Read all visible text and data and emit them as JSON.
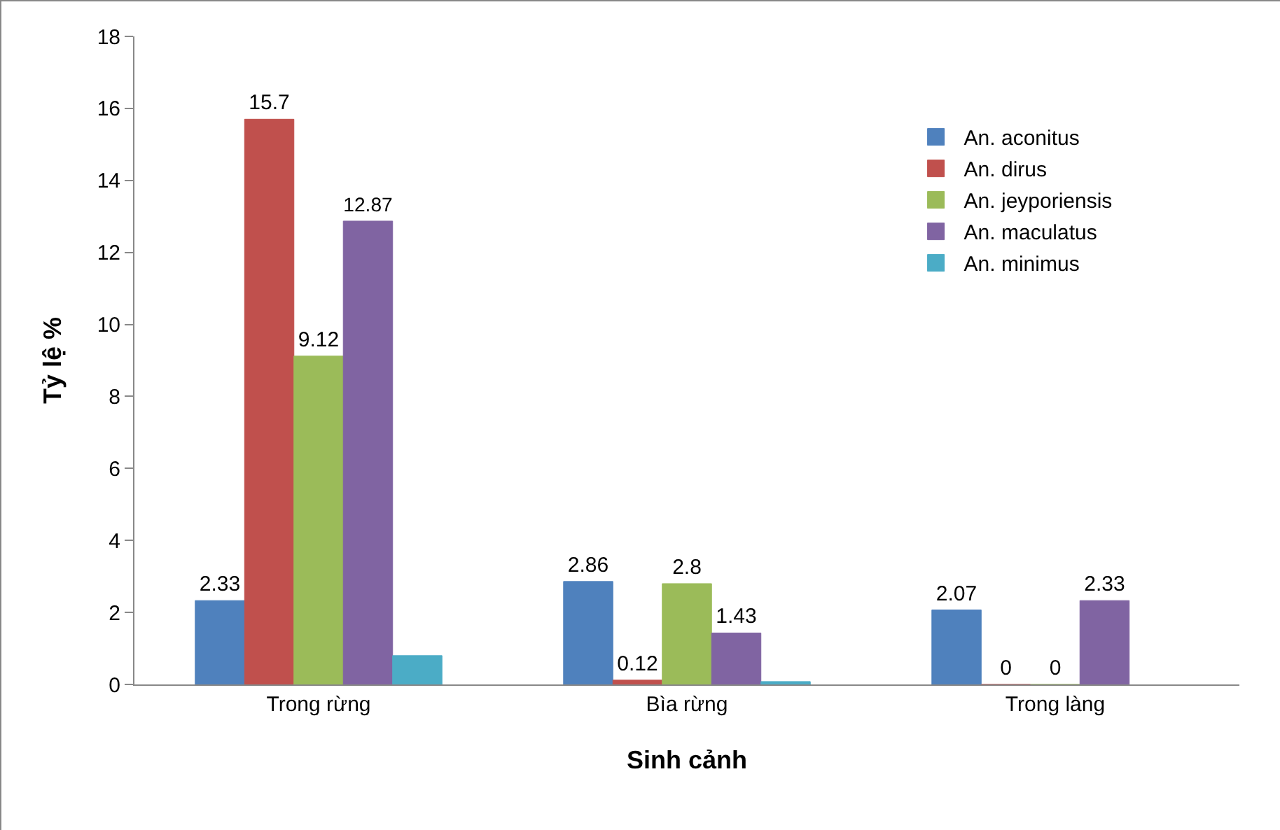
{
  "chart_data": {
    "type": "bar",
    "xlabel": "Sinh cảnh",
    "ylabel": "Tỷ lệ %",
    "categories": [
      "Trong rừng",
      "Bìa rừng",
      "Trong làng"
    ],
    "series": [
      {
        "name": "An. aconitus",
        "color": "#4f81bd",
        "values": [
          2.33,
          2.86,
          2.07
        ],
        "value_labels": [
          "2.33",
          "2.86",
          "2.07"
        ]
      },
      {
        "name": "An. dirus",
        "color": "#c0504d",
        "values": [
          15.7,
          0.12,
          0
        ],
        "value_labels": [
          "15.7",
          "0.12",
          "0"
        ]
      },
      {
        "name": "An. jeyporiensis",
        "color": "#9bbb59",
        "values": [
          9.12,
          2.8,
          0
        ],
        "value_labels": [
          "9.12",
          "2.8",
          "0"
        ]
      },
      {
        "name": "An. maculatus",
        "color": "#8064a2",
        "values": [
          12.87,
          1.43,
          2.33
        ],
        "value_labels": [
          "12.87",
          "1.43",
          "2.33"
        ]
      },
      {
        "name": "An. minimus",
        "color": "#4bacc6",
        "values": [
          0.8,
          0.08,
          null
        ],
        "value_labels": [
          null,
          null,
          null
        ]
      }
    ],
    "ylim": [
      0,
      18
    ],
    "yticks": [
      0,
      2,
      4,
      6,
      8,
      10,
      12,
      14,
      16,
      18
    ],
    "grid": false,
    "legend": "top right"
  }
}
